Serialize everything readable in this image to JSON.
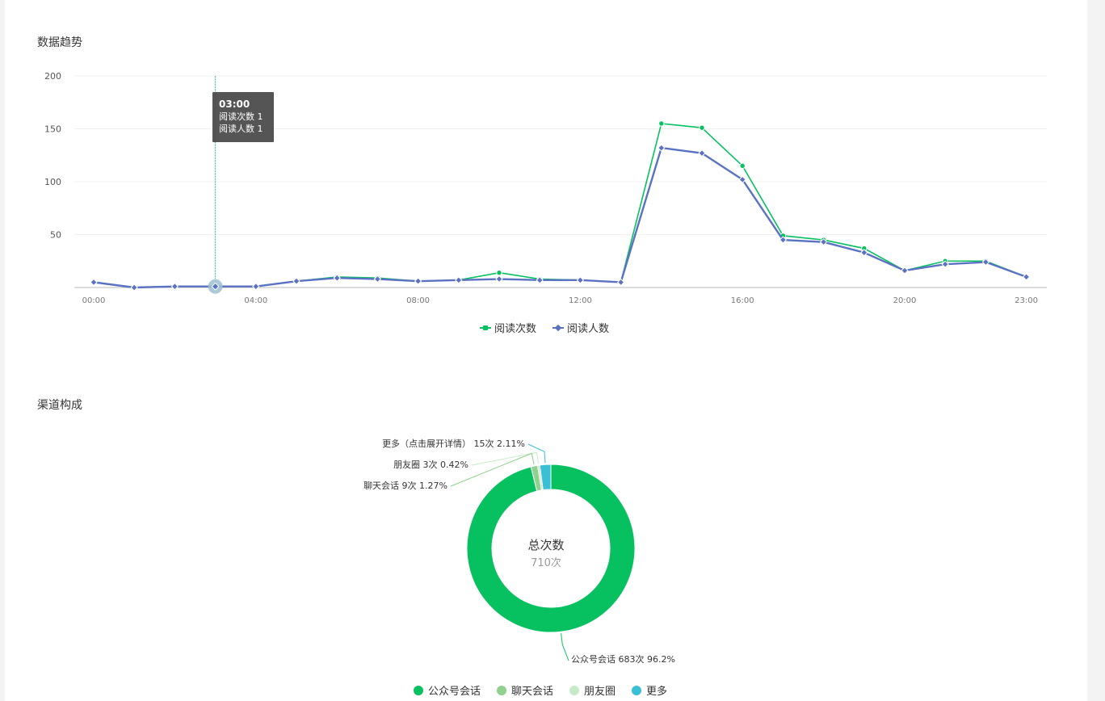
{
  "trend": {
    "title": "数据趋势",
    "tooltip": {
      "time": "03:00",
      "line1": "阅读次数 1",
      "line2": "阅读人数 1",
      "hour": 3
    },
    "legend": [
      "阅读次数",
      "阅读人数"
    ]
  },
  "channel": {
    "title": "渠道构成",
    "center_title": "总次数",
    "center_value": "710次",
    "labels": [
      "更多（点击展开详情） 15次 2.11%",
      "朋友圈 3次 0.42%",
      "聊天会话 9次 1.27%",
      "公众号会话 683次 96.2%"
    ],
    "legend": [
      "公众号会话",
      "聊天会话",
      "朋友圈",
      "更多"
    ]
  },
  "chart_data": [
    {
      "type": "line",
      "x": [
        "00:00",
        "01:00",
        "02:00",
        "03:00",
        "04:00",
        "05:00",
        "06:00",
        "07:00",
        "08:00",
        "09:00",
        "10:00",
        "11:00",
        "12:00",
        "13:00",
        "14:00",
        "15:00",
        "16:00",
        "17:00",
        "18:00",
        "19:00",
        "20:00",
        "21:00",
        "22:00",
        "23:00"
      ],
      "x_tick_labels": [
        "00:00",
        "04:00",
        "08:00",
        "12:00",
        "16:00",
        "20:00",
        "23:00"
      ],
      "y_tick_labels": [
        "50",
        "100",
        "150",
        "200"
      ],
      "ylim": [
        0,
        200
      ],
      "series": [
        {
          "name": "阅读次数",
          "color": "#07c160",
          "values": [
            5,
            0,
            1,
            1,
            1,
            6,
            10,
            9,
            6,
            7,
            14,
            8,
            7,
            5,
            155,
            151,
            115,
            49,
            45,
            37,
            16,
            25,
            25,
            10
          ]
        },
        {
          "name": "阅读人数",
          "color": "#5b72c4",
          "values": [
            5,
            0,
            1,
            1,
            1,
            6,
            9,
            8,
            6,
            7,
            8,
            7,
            7,
            5,
            132,
            127,
            102,
            45,
            43,
            33,
            16,
            22,
            24,
            10
          ]
        }
      ]
    },
    {
      "type": "pie",
      "categories": [
        "公众号会话",
        "聊天会话",
        "朋友圈",
        "更多"
      ],
      "values": [
        683,
        9,
        3,
        15
      ],
      "percentages": [
        96.2,
        1.27,
        0.42,
        2.11
      ],
      "colors": [
        "#07c160",
        "#8fd18d",
        "#c7ebc9",
        "#3ac0d6"
      ],
      "total": 710
    }
  ]
}
